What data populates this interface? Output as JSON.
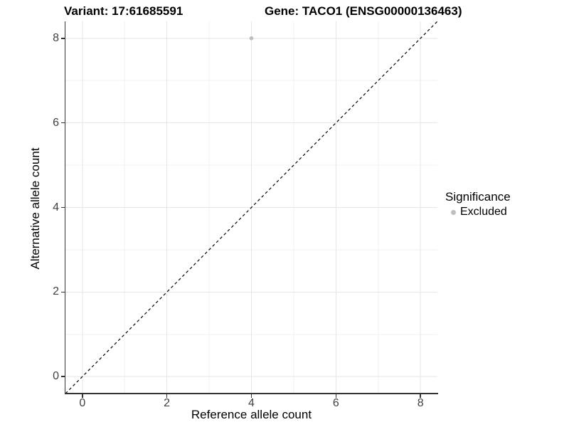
{
  "chart_data": {
    "type": "scatter",
    "title_left": "Variant: 17:61685591",
    "title_right": "Gene: TACO1 (ENSG00000136463)",
    "xlabel": "Reference allele count",
    "ylabel": "Alternative allele count",
    "xlim": [
      -0.4,
      8.4
    ],
    "ylim": [
      -0.4,
      8.4
    ],
    "x_ticks": [
      0,
      2,
      4,
      6,
      8
    ],
    "y_ticks": [
      0,
      2,
      4,
      6,
      8
    ],
    "x_minor_grid": [
      1,
      3,
      5,
      7
    ],
    "y_minor_grid": [
      1,
      3,
      5,
      7
    ],
    "grid": "on",
    "points": [
      {
        "x": 4,
        "y": 8,
        "significance": "Excluded"
      }
    ],
    "reference_line": {
      "type": "identity",
      "slope": 1,
      "intercept": 0,
      "style": "dashed"
    },
    "legend": {
      "title": "Significance",
      "position": "right",
      "entries": [
        {
          "label": "Excluded",
          "color": "#bebebe",
          "marker": "dot"
        }
      ]
    },
    "colors": {
      "point": "#bebebe",
      "reference_line": "#000000",
      "grid_major": "#e6e6e6",
      "grid_minor": "#f1f1f1",
      "axis_line": "#333333",
      "tick_label": "#404040"
    }
  }
}
